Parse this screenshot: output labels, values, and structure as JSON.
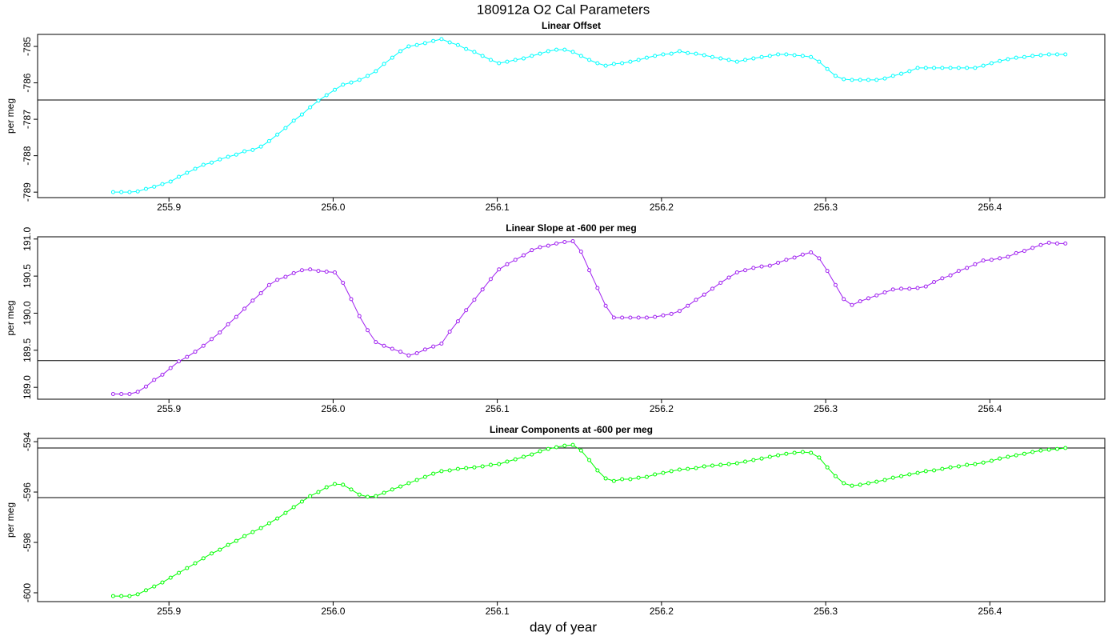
{
  "figure": {
    "title": "180912a   O2 Cal Parameters",
    "xlabel": "day of year"
  },
  "chart_data": [
    {
      "type": "line",
      "title": "Linear Offset",
      "ylabel": "per meg",
      "color": "#00ffff",
      "marker": "circle",
      "x": [
        255.866,
        255.871,
        255.876,
        255.881,
        255.886,
        255.891,
        255.896,
        255.901,
        255.906,
        255.911,
        255.916,
        255.921,
        255.926,
        255.931,
        255.936,
        255.941,
        255.946,
        255.951,
        255.956,
        255.961,
        255.966,
        255.971,
        255.976,
        255.981,
        255.986,
        255.991,
        255.996,
        256.001,
        256.006,
        256.011,
        256.016,
        256.021,
        256.026,
        256.031,
        256.036,
        256.041,
        256.046,
        256.051,
        256.056,
        256.061,
        256.066,
        256.071,
        256.076,
        256.081,
        256.086,
        256.091,
        256.096,
        256.101,
        256.106,
        256.111,
        256.116,
        256.121,
        256.126,
        256.131,
        256.136,
        256.141,
        256.146,
        256.151,
        256.156,
        256.161,
        256.166,
        256.171,
        256.176,
        256.181,
        256.186,
        256.191,
        256.196,
        256.201,
        256.206,
        256.211,
        256.216,
        256.221,
        256.226,
        256.231,
        256.236,
        256.241,
        256.246,
        256.251,
        256.256,
        256.261,
        256.266,
        256.271,
        256.276,
        256.281,
        256.286,
        256.291,
        256.296,
        256.301,
        256.306,
        256.311,
        256.316,
        256.321,
        256.326,
        256.331,
        256.336,
        256.341,
        256.346,
        256.351,
        256.356,
        256.361,
        256.366,
        256.371,
        256.376,
        256.381,
        256.386,
        256.391,
        256.396,
        256.401,
        256.406,
        256.411,
        256.416,
        256.421,
        256.426,
        256.431,
        256.436,
        256.441,
        256.446
      ],
      "values": [
        -789,
        -789,
        -789,
        -788.98,
        -788.91,
        -788.85,
        -788.78,
        -788.71,
        -788.58,
        -788.47,
        -788.36,
        -788.25,
        -788.19,
        -788.1,
        -788.03,
        -787.97,
        -787.88,
        -787.84,
        -787.75,
        -787.6,
        -787.42,
        -787.24,
        -787.04,
        -786.87,
        -786.67,
        -786.49,
        -786.34,
        -786.19,
        -786.05,
        -785.99,
        -785.92,
        -785.81,
        -785.68,
        -785.48,
        -785.31,
        -785.13,
        -785,
        -784.96,
        -784.91,
        -784.85,
        -784.8,
        -784.89,
        -784.96,
        -785.07,
        -785.15,
        -785.26,
        -785.37,
        -785.46,
        -785.42,
        -785.37,
        -785.33,
        -785.26,
        -785.2,
        -785.13,
        -785.09,
        -785.09,
        -785.15,
        -785.26,
        -785.37,
        -785.46,
        -785.53,
        -785.48,
        -785.46,
        -785.42,
        -785.37,
        -785.31,
        -785.26,
        -785.22,
        -785.2,
        -785.13,
        -785.18,
        -785.2,
        -785.24,
        -785.29,
        -785.33,
        -785.37,
        -785.42,
        -785.37,
        -785.33,
        -785.29,
        -785.26,
        -785.22,
        -785.22,
        -785.24,
        -785.26,
        -785.29,
        -785.42,
        -785.62,
        -785.81,
        -785.9,
        -785.92,
        -785.92,
        -785.92,
        -785.92,
        -785.88,
        -785.81,
        -785.75,
        -785.68,
        -785.59,
        -785.59,
        -785.59,
        -785.59,
        -785.59,
        -785.59,
        -785.59,
        -785.59,
        -785.53,
        -785.46,
        -785.4,
        -785.35,
        -785.31,
        -785.29,
        -785.26,
        -785.24,
        -785.22,
        -785.22,
        -785.22
      ],
      "xlim": [
        255.82,
        256.47
      ],
      "xticks": [
        255.9,
        {
          "value": 256,
          "label": "256.0"
        },
        256.1,
        256.2,
        256.3,
        256.4
      ],
      "ylim": [
        -789.15,
        -784.67
      ],
      "yticks": [
        -789,
        -788,
        -787,
        -786,
        -785
      ],
      "hlines": [
        -786.47
      ]
    },
    {
      "type": "line",
      "title": "Linear Slope at -600 per meg",
      "ylabel": "per meg",
      "color": "#a020f0",
      "marker": "circle",
      "x": [
        255.866,
        255.871,
        255.876,
        255.881,
        255.886,
        255.891,
        255.896,
        255.901,
        255.906,
        255.911,
        255.916,
        255.921,
        255.926,
        255.931,
        255.936,
        255.941,
        255.946,
        255.951,
        255.956,
        255.961,
        255.966,
        255.971,
        255.976,
        255.981,
        255.986,
        255.991,
        255.996,
        256.001,
        256.006,
        256.011,
        256.016,
        256.021,
        256.026,
        256.031,
        256.036,
        256.041,
        256.046,
        256.051,
        256.056,
        256.061,
        256.066,
        256.071,
        256.076,
        256.081,
        256.086,
        256.091,
        256.096,
        256.101,
        256.106,
        256.111,
        256.116,
        256.121,
        256.126,
        256.131,
        256.136,
        256.141,
        256.146,
        256.151,
        256.156,
        256.161,
        256.166,
        256.171,
        256.176,
        256.181,
        256.186,
        256.191,
        256.196,
        256.201,
        256.206,
        256.211,
        256.216,
        256.221,
        256.226,
        256.231,
        256.236,
        256.241,
        256.246,
        256.251,
        256.256,
        256.261,
        256.266,
        256.271,
        256.276,
        256.281,
        256.286,
        256.291,
        256.296,
        256.301,
        256.306,
        256.311,
        256.316,
        256.321,
        256.326,
        256.331,
        256.336,
        256.341,
        256.346,
        256.351,
        256.356,
        256.361,
        256.366,
        256.371,
        256.376,
        256.381,
        256.386,
        256.391,
        256.396,
        256.401,
        256.406,
        256.411,
        256.416,
        256.421,
        256.426,
        256.431,
        256.436,
        256.441,
        256.446
      ],
      "values": [
        188.91,
        188.91,
        188.91,
        188.94,
        189.01,
        189.1,
        189.17,
        189.26,
        189.35,
        189.41,
        189.48,
        189.56,
        189.65,
        189.74,
        189.85,
        189.95,
        190.06,
        190.17,
        190.27,
        190.38,
        190.45,
        190.49,
        190.54,
        190.58,
        190.59,
        190.57,
        190.56,
        190.55,
        190.41,
        190.19,
        189.96,
        189.77,
        189.61,
        189.56,
        189.52,
        189.48,
        189.43,
        189.46,
        189.51,
        189.55,
        189.59,
        189.75,
        189.89,
        190.04,
        190.18,
        190.32,
        190.46,
        190.59,
        190.66,
        190.72,
        190.78,
        190.85,
        190.89,
        190.91,
        190.94,
        190.96,
        190.97,
        190.83,
        190.58,
        190.34,
        190.1,
        189.94,
        189.94,
        189.94,
        189.94,
        189.94,
        189.95,
        189.97,
        189.99,
        190.03,
        190.1,
        190.18,
        190.25,
        190.33,
        190.41,
        190.48,
        190.55,
        190.58,
        190.61,
        190.63,
        190.64,
        190.68,
        190.72,
        190.75,
        190.79,
        190.82,
        190.74,
        190.57,
        190.38,
        190.19,
        190.11,
        190.16,
        190.2,
        190.24,
        190.28,
        190.32,
        190.33,
        190.33,
        190.34,
        190.36,
        190.42,
        190.47,
        190.51,
        190.57,
        190.61,
        190.66,
        190.71,
        190.72,
        190.74,
        190.76,
        190.81,
        190.84,
        190.88,
        190.92,
        190.95,
        190.94,
        190.94
      ],
      "xlim": [
        255.82,
        256.47
      ],
      "xticks": [
        255.9,
        {
          "value": 256,
          "label": "256.0"
        },
        256.1,
        256.2,
        256.3,
        256.4
      ],
      "ylim": [
        188.84,
        191.03
      ],
      "yticks": [
        {
          "value": 189,
          "label": "189.0"
        },
        189.5,
        {
          "value": 190,
          "label": "190.0"
        },
        190.5,
        {
          "value": 191,
          "label": "191.0"
        }
      ],
      "hlines": [
        189.36
      ]
    },
    {
      "type": "line",
      "title": "Linear Components at -600 per meg",
      "ylabel": "per meg",
      "color": "#00ff00",
      "marker": "circle",
      "x": [
        255.866,
        255.871,
        255.876,
        255.881,
        255.886,
        255.891,
        255.896,
        255.901,
        255.906,
        255.911,
        255.916,
        255.921,
        255.926,
        255.931,
        255.936,
        255.941,
        255.946,
        255.951,
        255.956,
        255.961,
        255.966,
        255.971,
        255.976,
        255.981,
        255.986,
        255.991,
        255.996,
        256.001,
        256.006,
        256.011,
        256.016,
        256.021,
        256.026,
        256.031,
        256.036,
        256.041,
        256.046,
        256.051,
        256.056,
        256.061,
        256.066,
        256.071,
        256.076,
        256.081,
        256.086,
        256.091,
        256.096,
        256.101,
        256.106,
        256.111,
        256.116,
        256.121,
        256.126,
        256.131,
        256.136,
        256.141,
        256.146,
        256.151,
        256.156,
        256.161,
        256.166,
        256.171,
        256.176,
        256.181,
        256.186,
        256.191,
        256.196,
        256.201,
        256.206,
        256.211,
        256.216,
        256.221,
        256.226,
        256.231,
        256.236,
        256.241,
        256.246,
        256.251,
        256.256,
        256.261,
        256.266,
        256.271,
        256.276,
        256.281,
        256.286,
        256.291,
        256.296,
        256.301,
        256.306,
        256.311,
        256.316,
        256.321,
        256.326,
        256.331,
        256.336,
        256.341,
        256.346,
        256.351,
        256.356,
        256.361,
        256.366,
        256.371,
        256.376,
        256.381,
        256.386,
        256.391,
        256.396,
        256.401,
        256.406,
        256.411,
        256.416,
        256.421,
        256.426,
        256.431,
        256.436,
        256.441,
        256.446
      ],
      "values": [
        -600.13,
        -600.13,
        -600.13,
        -600.06,
        -599.9,
        -599.75,
        -599.59,
        -599.4,
        -599.21,
        -599.02,
        -598.83,
        -598.63,
        -598.44,
        -598.29,
        -598.1,
        -597.94,
        -597.75,
        -597.59,
        -597.43,
        -597.24,
        -597.05,
        -596.83,
        -596.6,
        -596.38,
        -596.16,
        -596,
        -595.81,
        -595.68,
        -595.71,
        -595.9,
        -596.1,
        -596.19,
        -596.16,
        -596.03,
        -595.9,
        -595.78,
        -595.65,
        -595.52,
        -595.4,
        -595.27,
        -595.17,
        -595.14,
        -595.08,
        -595.05,
        -595.02,
        -594.98,
        -594.92,
        -594.89,
        -594.79,
        -594.7,
        -594.6,
        -594.51,
        -594.38,
        -594.29,
        -594.22,
        -594.16,
        -594.13,
        -594.35,
        -594.73,
        -595.14,
        -595.46,
        -595.56,
        -595.49,
        -595.49,
        -595.43,
        -595.4,
        -595.3,
        -595.24,
        -595.17,
        -595.11,
        -595.08,
        -595.05,
        -594.98,
        -594.95,
        -594.92,
        -594.89,
        -594.86,
        -594.79,
        -594.73,
        -594.67,
        -594.6,
        -594.54,
        -594.48,
        -594.44,
        -594.41,
        -594.44,
        -594.63,
        -595.02,
        -595.37,
        -595.65,
        -595.75,
        -595.71,
        -595.65,
        -595.59,
        -595.52,
        -595.43,
        -595.37,
        -595.3,
        -595.24,
        -595.17,
        -595.14,
        -595.08,
        -595.02,
        -594.98,
        -594.92,
        -594.89,
        -594.83,
        -594.76,
        -594.67,
        -594.6,
        -594.54,
        -594.48,
        -594.41,
        -594.35,
        -594.32,
        -594.29,
        -594.25
      ],
      "xlim": [
        255.82,
        256.47
      ],
      "xticks": [
        255.9,
        {
          "value": 256,
          "label": "256.0"
        },
        256.1,
        256.2,
        256.3,
        256.4
      ],
      "ylim": [
        -600.35,
        -593.87
      ],
      "yticks": [
        -600,
        -598,
        -596,
        -594
      ],
      "hlines": [
        -596.22,
        -594.25
      ]
    }
  ]
}
